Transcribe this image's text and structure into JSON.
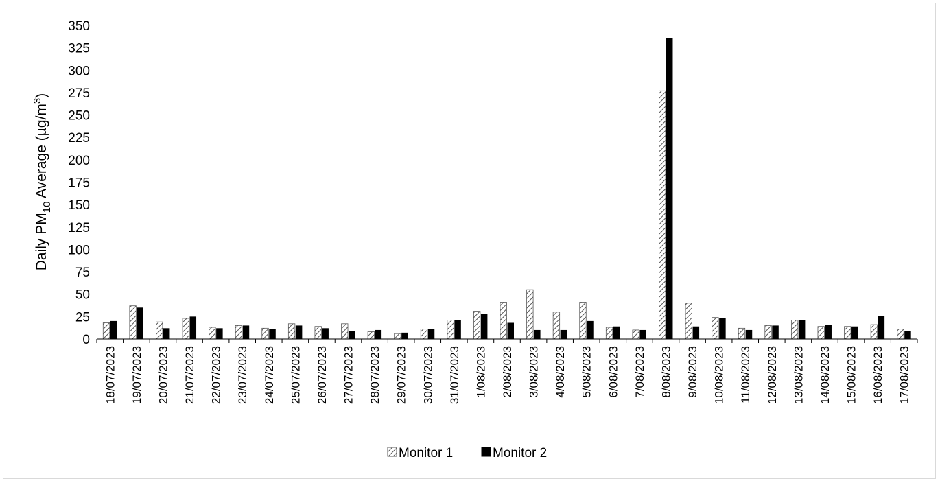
{
  "chart_data": {
    "type": "bar",
    "title": "",
    "xlabel": "",
    "ylabel": {
      "prefix": "Daily PM",
      "subscript": "10",
      "middle": " Average (µg/m",
      "superscript": "3",
      "suffix": ")"
    },
    "ylim": [
      0,
      350
    ],
    "yticks": [
      0,
      25,
      50,
      75,
      100,
      125,
      150,
      175,
      200,
      225,
      250,
      275,
      300,
      325,
      350
    ],
    "grid": false,
    "legend_position": "bottom",
    "categories": [
      "18/07/2023",
      "19/07/2023",
      "20/07/2023",
      "21/07/2023",
      "22/07/2023",
      "23/07/2023",
      "24/07/2023",
      "25/07/2023",
      "26/07/2023",
      "27/07/2023",
      "28/07/2023",
      "29/07/2023",
      "30/07/2023",
      "31/07/2023",
      "1/08/2023",
      "2/08/2023",
      "3/08/2023",
      "4/08/2023",
      "5/08/2023",
      "6/08/2023",
      "7/08/2023",
      "8/08/2023",
      "9/08/2023",
      "10/08/2023",
      "11/08/2023",
      "12/08/2023",
      "13/08/2023",
      "14/08/2023",
      "15/08/2023",
      "16/08/2023",
      "17/08/2023"
    ],
    "series": [
      {
        "name": "Monitor 1",
        "style": "hatched",
        "color": "#808080",
        "values": [
          18,
          37,
          19,
          23,
          13,
          15,
          12,
          17,
          14,
          17,
          8,
          6,
          11,
          21,
          31,
          41,
          55,
          30,
          41,
          13,
          10,
          277,
          40,
          24,
          12,
          15,
          21,
          14,
          14,
          16,
          11
        ]
      },
      {
        "name": "Monitor 2",
        "style": "solid",
        "color": "#000000",
        "values": [
          20,
          35,
          12,
          25,
          12,
          15,
          11,
          15,
          12,
          9,
          10,
          7,
          11,
          21,
          28,
          18,
          10,
          10,
          20,
          14,
          10,
          336,
          14,
          23,
          10,
          15,
          21,
          16,
          14,
          26,
          9
        ]
      }
    ]
  }
}
